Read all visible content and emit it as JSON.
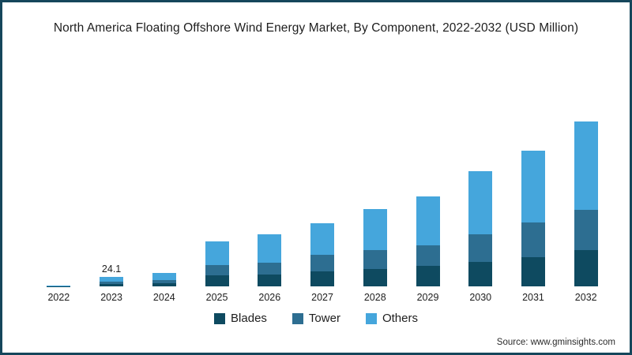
{
  "title": "North America Floating Offshore Wind Energy Market, By Component, 2022-2032 (USD Million)",
  "source_label": "Source: www.gminsights.com",
  "colors": {
    "frame_border": "#15465b",
    "blades": "#0e4a60",
    "tower": "#2d6e91",
    "others": "#45a6dc",
    "text": "#1e1e1e"
  },
  "chart_data": {
    "type": "bar",
    "stacked": true,
    "title": "North America Floating Offshore Wind Energy Market, By Component, 2022-2032 (USD Million)",
    "xlabel": "",
    "ylabel": "USD Million",
    "categories": [
      "2022",
      "2023",
      "2024",
      "2025",
      "2026",
      "2027",
      "2028",
      "2029",
      "2030",
      "2031",
      "2032"
    ],
    "series": [
      {
        "name": "Blades",
        "color": "#0e4a60",
        "values": [
          0.6,
          6.7,
          7.8,
          27.0,
          28.9,
          36.6,
          42.4,
          50.1,
          59.8,
          71.3,
          88.7
        ]
      },
      {
        "name": "Tower",
        "color": "#2d6e91",
        "values": [
          0.4,
          5.8,
          7.7,
          25.1,
          28.9,
          40.5,
          46.3,
          50.1,
          67.5,
          84.8,
          98.3
        ]
      },
      {
        "name": "Others",
        "color": "#45a6dc",
        "values": [
          0.9,
          11.6,
          17.3,
          57.8,
          69.4,
          77.1,
          100.3,
          119.5,
          154.2,
          175.4,
          215.9
        ]
      }
    ],
    "totals": [
      1.9,
      24.1,
      32.8,
      109.9,
      127.2,
      154.2,
      189.0,
      219.7,
      281.5,
      331.6,
      402.9
    ],
    "data_labels": {
      "2023": "24.1"
    },
    "ylim": [
      0,
      450
    ],
    "grid": false,
    "axis_lines": false,
    "legend_position": "bottom"
  }
}
